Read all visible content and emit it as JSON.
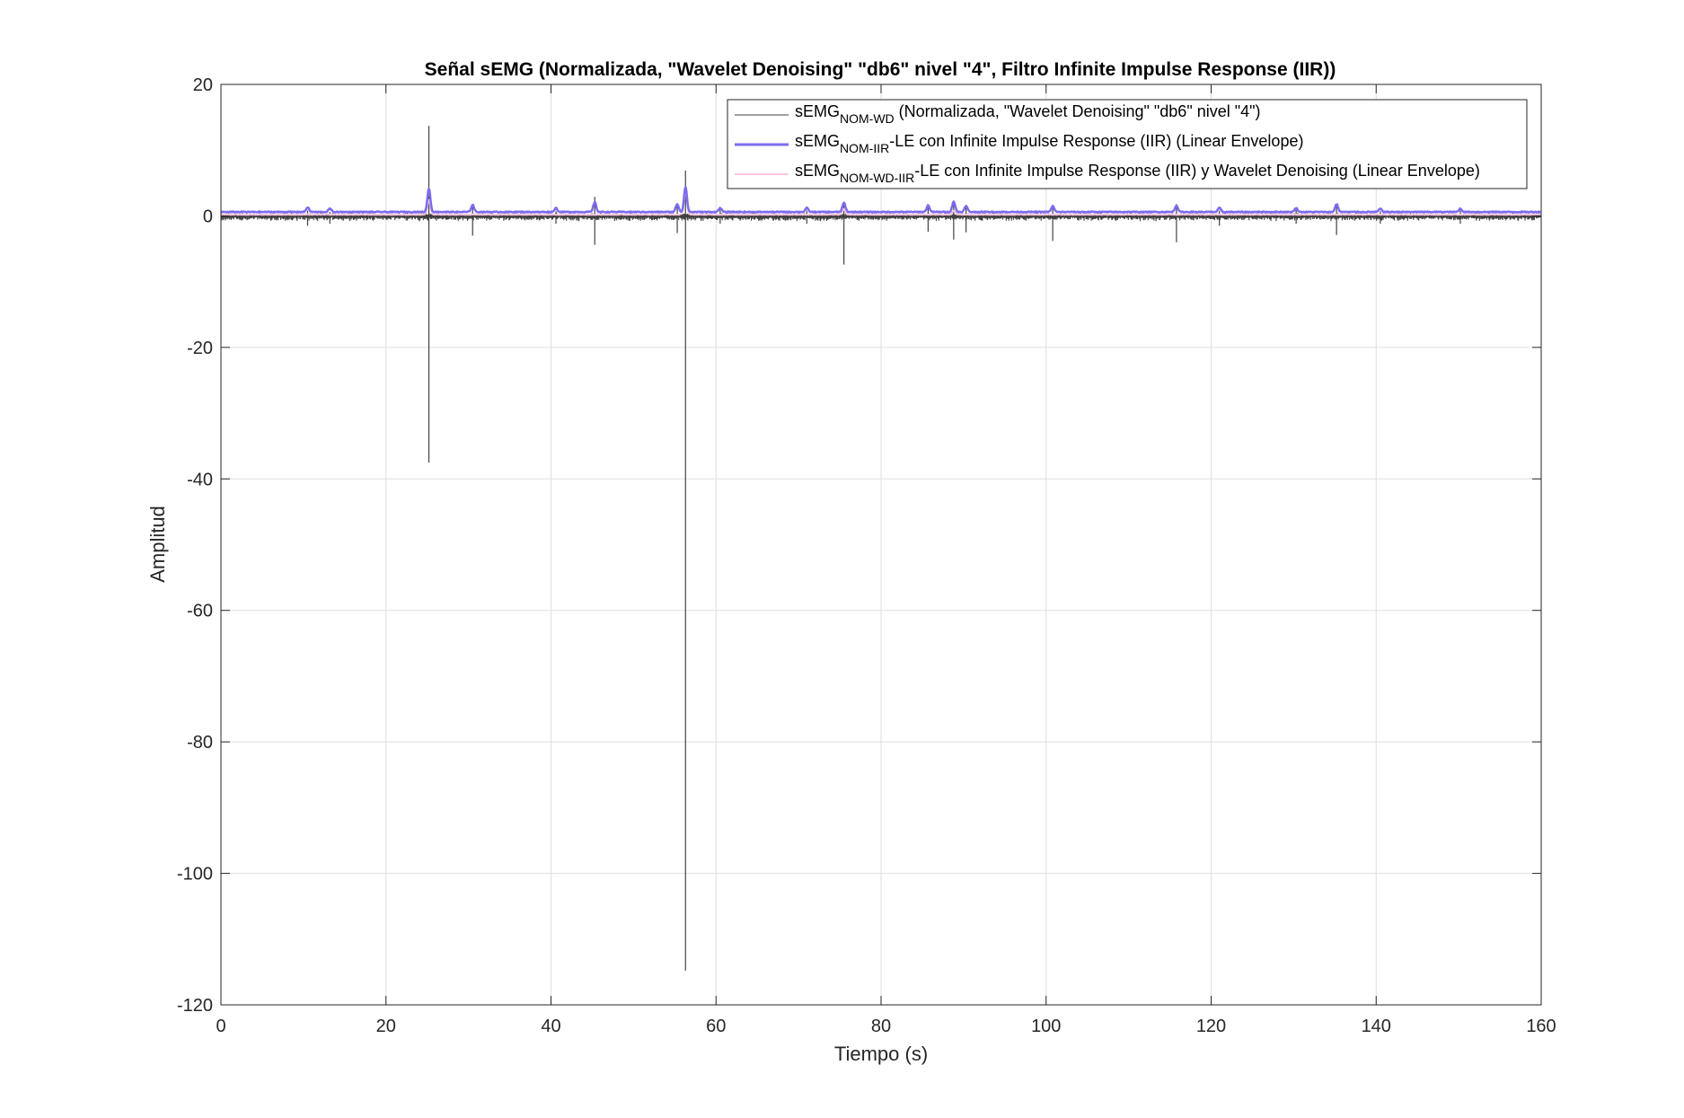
{
  "chart_data": {
    "type": "line",
    "title": "Señal sEMG (Normalizada, \"Wavelet Denoising\" \"db6\" nivel \"4\", Filtro Infinite Impulse Response (IIR))",
    "xlabel": "Tiempo (s)",
    "ylabel": "Amplitud",
    "xlim": [
      0,
      160
    ],
    "ylim": [
      -120,
      20
    ],
    "x_ticks": [
      "0",
      "20",
      "40",
      "60",
      "80",
      "100",
      "120",
      "140",
      "160"
    ],
    "y_ticks": [
      "20",
      "0",
      "-20",
      "-40",
      "-60",
      "-80",
      "-100",
      "-120"
    ],
    "grid": true,
    "legend_position": "top-right",
    "legend": [
      {
        "base": "sEMG",
        "sub": "NOM-WD",
        "rest": " (Normalizada, \"Wavelet Denoising\" \"db6\" nivel \"4\")",
        "color": "#404040"
      },
      {
        "base": "sEMG",
        "sub": "NOM-IIR",
        "rest": "-LE con Infinite Impulse Response (IIR) (Linear Envelope)",
        "color": "#7b6cf0"
      },
      {
        "base": "sEMG",
        "sub": "NOM-WD-IIR",
        "rest": "-LE con Infinite Impulse Response (IIR) y Wavelet Denoising (Linear Envelope)",
        "color": "#f7c6dc"
      }
    ],
    "series": [
      {
        "color": "#404040",
        "width": 1,
        "baseline": 0,
        "noise": 0.4,
        "spikes": [
          {
            "x": 10.5,
            "lo": -1.5,
            "hi": 0.8
          },
          {
            "x": 13.2,
            "lo": -1.2,
            "hi": 0.6
          },
          {
            "x": 25.2,
            "lo": -37.5,
            "hi": 13.7
          },
          {
            "x": 30.5,
            "lo": -3.0,
            "hi": 1.5
          },
          {
            "x": 40.6,
            "lo": -1.2,
            "hi": 0.7
          },
          {
            "x": 45.3,
            "lo": -4.4,
            "hi": 2.9
          },
          {
            "x": 55.3,
            "lo": -2.6,
            "hi": 1.5
          },
          {
            "x": 56.3,
            "lo": -114.8,
            "hi": 6.9
          },
          {
            "x": 60.5,
            "lo": -1.2,
            "hi": 1.0
          },
          {
            "x": 71.0,
            "lo": -1.2,
            "hi": 0.8
          },
          {
            "x": 75.5,
            "lo": -7.4,
            "hi": 1.7
          },
          {
            "x": 85.7,
            "lo": -2.4,
            "hi": 1.6
          },
          {
            "x": 88.8,
            "lo": -3.6,
            "hi": 2.0
          },
          {
            "x": 90.3,
            "lo": -2.5,
            "hi": 1.3
          },
          {
            "x": 100.8,
            "lo": -3.8,
            "hi": 1.2
          },
          {
            "x": 115.8,
            "lo": -4.0,
            "hi": 1.8
          },
          {
            "x": 121.0,
            "lo": -1.5,
            "hi": 0.8
          },
          {
            "x": 130.3,
            "lo": -1.2,
            "hi": 0.9
          },
          {
            "x": 135.2,
            "lo": -2.9,
            "hi": 1.7
          },
          {
            "x": 140.5,
            "lo": -1.2,
            "hi": 0.7
          },
          {
            "x": 150.2,
            "lo": -1.2,
            "hi": 0.8
          }
        ]
      },
      {
        "color": "#f7c6dc",
        "width": 2,
        "baseline": 0.2,
        "noise": 0.1,
        "peaks": [
          {
            "x": 25.2,
            "h": 2.2
          },
          {
            "x": 56.3,
            "h": 3.6
          },
          {
            "x": 75.5,
            "h": 0.8
          },
          {
            "x": 88.8,
            "h": 0.6
          }
        ]
      },
      {
        "color": "#7b6cf0",
        "width": 2.5,
        "baseline": 0.6,
        "noise": 0.15,
        "peaks": [
          {
            "x": 10.5,
            "h": 0.7
          },
          {
            "x": 13.2,
            "h": 0.5
          },
          {
            "x": 25.2,
            "h": 3.6
          },
          {
            "x": 30.5,
            "h": 1.1
          },
          {
            "x": 40.6,
            "h": 0.6
          },
          {
            "x": 45.3,
            "h": 1.5
          },
          {
            "x": 55.3,
            "h": 1.2
          },
          {
            "x": 56.3,
            "h": 3.8
          },
          {
            "x": 60.5,
            "h": 0.6
          },
          {
            "x": 71.0,
            "h": 0.6
          },
          {
            "x": 75.5,
            "h": 1.4
          },
          {
            "x": 85.7,
            "h": 1.0
          },
          {
            "x": 88.8,
            "h": 1.6
          },
          {
            "x": 90.3,
            "h": 0.9
          },
          {
            "x": 100.8,
            "h": 0.9
          },
          {
            "x": 115.8,
            "h": 1.0
          },
          {
            "x": 121.0,
            "h": 0.6
          },
          {
            "x": 130.3,
            "h": 0.6
          },
          {
            "x": 135.2,
            "h": 1.2
          },
          {
            "x": 140.5,
            "h": 0.5
          },
          {
            "x": 150.2,
            "h": 0.5
          }
        ]
      }
    ]
  }
}
